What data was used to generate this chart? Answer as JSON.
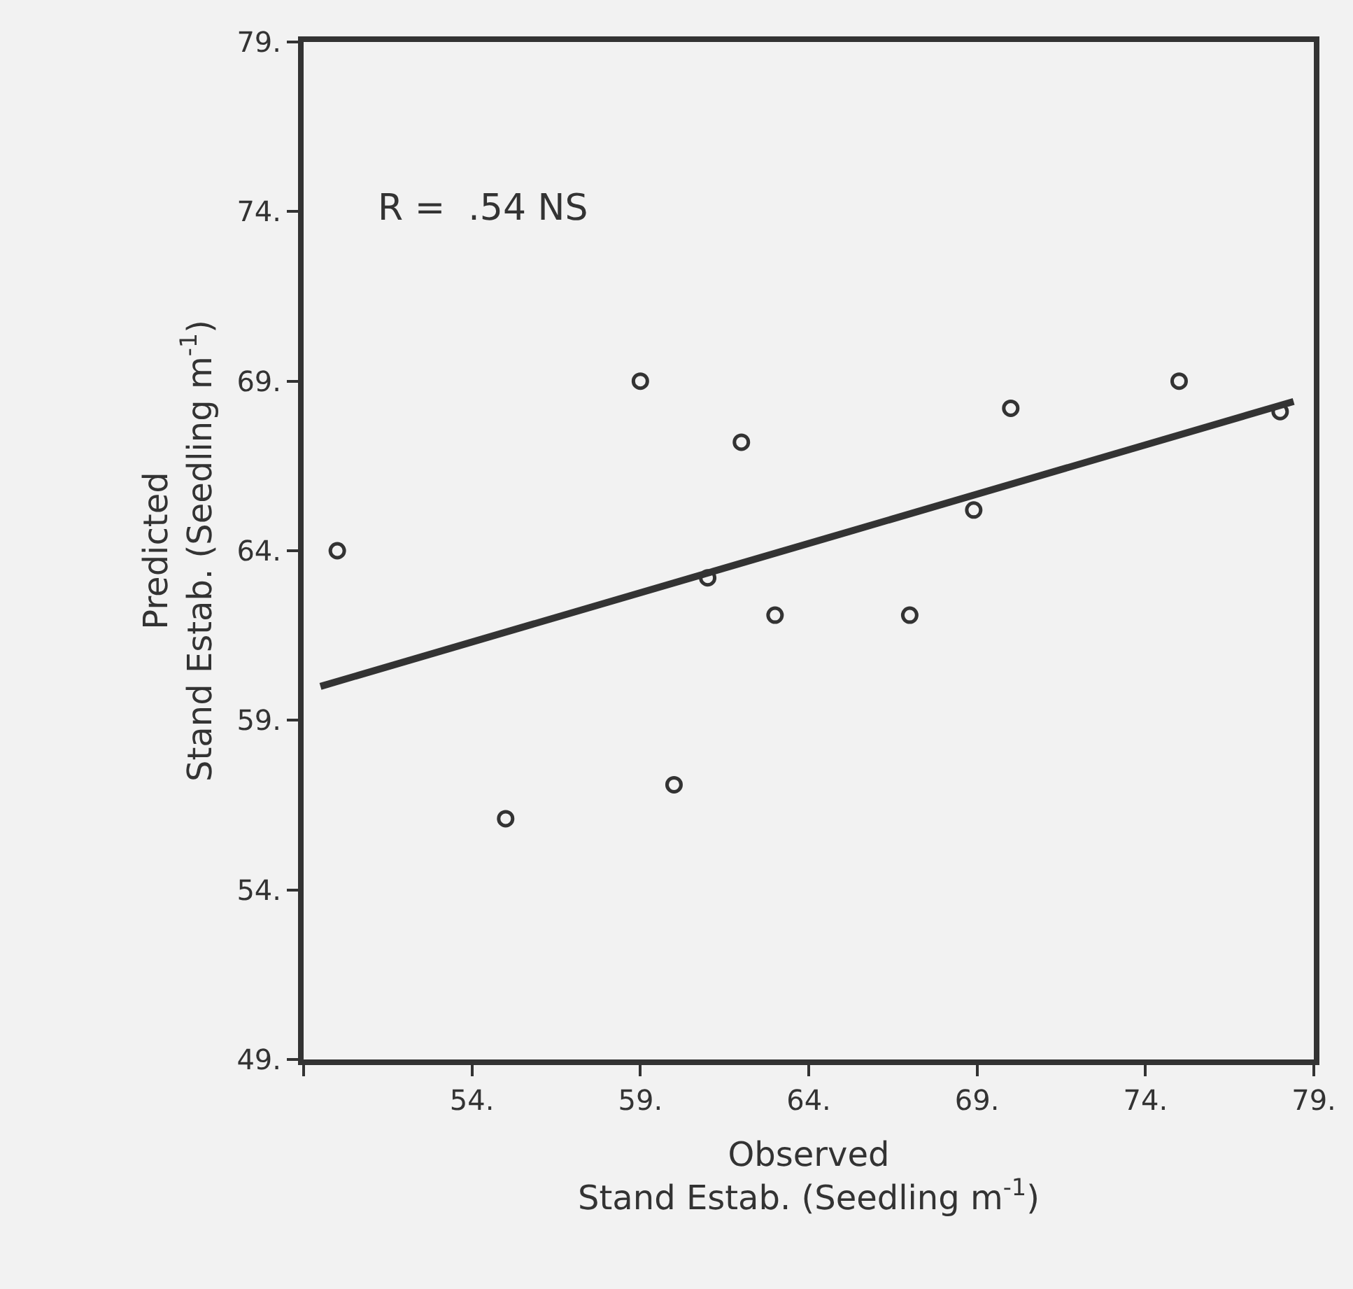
{
  "chart_data": {
    "type": "scatter",
    "xlabel": "Observed\nStand Estab. (Seedling m$^{-1}$)",
    "ylabel": "Predicted\nStand Estab. (Seedling m$^{-1}$)",
    "annotations": [
      "R =  .54 NS"
    ],
    "xlim": [
      49,
      79
    ],
    "ylim": [
      49,
      79
    ],
    "xticks": [
      {
        "value": 49,
        "label": null
      },
      {
        "value": 54,
        "label": "54."
      },
      {
        "value": 59,
        "label": "59."
      },
      {
        "value": 64,
        "label": "64."
      },
      {
        "value": 69,
        "label": "69."
      },
      {
        "value": 74,
        "label": "74."
      },
      {
        "value": 79,
        "label": "79."
      }
    ],
    "yticks": [
      {
        "value": 49,
        "label": "49."
      },
      {
        "value": 54,
        "label": "54."
      },
      {
        "value": 59,
        "label": "59."
      },
      {
        "value": 64,
        "label": "64."
      },
      {
        "value": 69,
        "label": "69."
      },
      {
        "value": 74,
        "label": "74."
      },
      {
        "value": 79,
        "label": "79."
      }
    ],
    "series": [
      {
        "color": "#333333",
        "marker": "circle",
        "x": [
          50.0,
          55.0,
          59.0,
          60.0,
          61.0,
          62.0,
          63.0,
          67.0,
          68.9,
          70.0,
          75.0,
          78.0
        ],
        "values": [
          64.0,
          56.1,
          69.0,
          57.1,
          63.2,
          67.2,
          62.1,
          62.1,
          65.2,
          68.2,
          69.0,
          68.1
        ]
      },
      {
        "type": "line",
        "color": "#333333",
        "line_style": "solid",
        "x": [
          49.5,
          78.4
        ],
        "values": [
          60.0,
          68.4
        ]
      }
    ]
  }
}
